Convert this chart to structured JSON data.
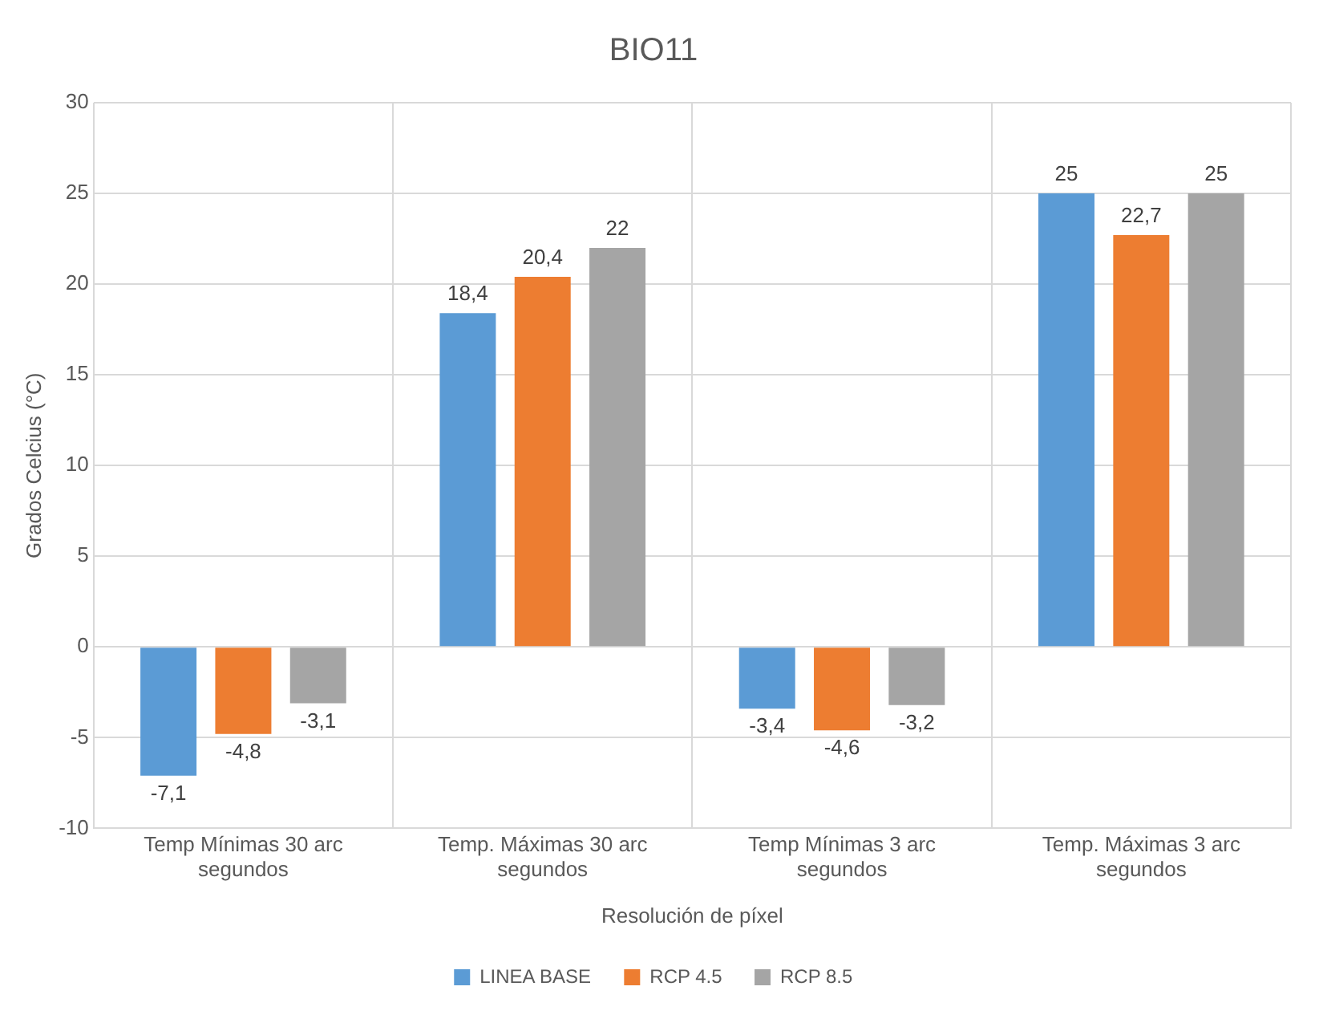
{
  "chart_data": {
    "type": "bar",
    "title": "BIO11",
    "xlabel": "Resolución de píxel",
    "ylabel": "Grados Celcius (°C)",
    "categories": [
      "Temp Mínimas 30 arc segundos",
      "Temp. Máximas 30 arc segundos",
      "Temp Mínimas 3 arc segundos",
      "Temp. Máximas 3 arc segundos"
    ],
    "series": [
      {
        "name": "LINEA BASE",
        "color": "#5b9bd5",
        "values": [
          -7.1,
          18.4,
          -3.4,
          25
        ],
        "value_labels": [
          "-7,1",
          "18,4",
          "-3,4",
          "25"
        ]
      },
      {
        "name": "RCP 4.5",
        "color": "#ed7d31",
        "values": [
          -4.8,
          20.4,
          -4.6,
          22.7
        ],
        "value_labels": [
          "-4,8",
          "20,4",
          "-4,6",
          "22,7"
        ]
      },
      {
        "name": "RCP 8.5",
        "color": "#a5a5a5",
        "values": [
          -3.1,
          22,
          -3.2,
          25
        ],
        "value_labels": [
          "-3,1",
          "22",
          "-3,2",
          "25"
        ]
      }
    ],
    "ylim": [
      -10,
      30
    ],
    "yticks": [
      -10,
      -5,
      0,
      5,
      10,
      15,
      20,
      25,
      30
    ],
    "grid": true,
    "legend": "bottom"
  }
}
